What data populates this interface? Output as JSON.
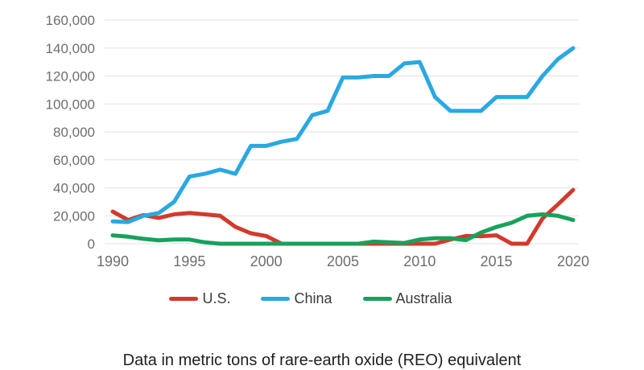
{
  "caption": {
    "text": "Data in metric tons of rare-earth oxide (REO) equivalent"
  },
  "chart_data": {
    "type": "line",
    "title": "",
    "xlabel": "",
    "ylabel": "",
    "unit": "metric tons REO equivalent",
    "grid": "horizontal",
    "legend_position": "bottom",
    "ylim": [
      0,
      160000
    ],
    "y_ticks": [
      0,
      20000,
      40000,
      60000,
      80000,
      100000,
      120000,
      140000,
      160000
    ],
    "y_tick_labels": [
      "0",
      "20,000",
      "40,000",
      "60,000",
      "80,000",
      "100,000",
      "120,000",
      "140,000",
      "160,000"
    ],
    "x_ticks": [
      1990,
      1995,
      2000,
      2005,
      2010,
      2015,
      2020
    ],
    "x_tick_labels": [
      "1990",
      "1995",
      "2000",
      "2005",
      "2010",
      "2015",
      "2020"
    ],
    "x": [
      1990,
      1991,
      1992,
      1993,
      1994,
      1995,
      1996,
      1997,
      1998,
      1999,
      2000,
      2001,
      2002,
      2003,
      2004,
      2005,
      2006,
      2007,
      2008,
      2009,
      2010,
      2011,
      2012,
      2013,
      2014,
      2015,
      2016,
      2017,
      2018,
      2019,
      2020
    ],
    "series": [
      {
        "id": "us",
        "name": "U.S.",
        "color": "#d33a2c",
        "values": [
          23000,
          17000,
          20500,
          18500,
          21000,
          22000,
          21000,
          20000,
          12000,
          7500,
          5500,
          0,
          0,
          0,
          0,
          0,
          0,
          0,
          0,
          0,
          0,
          0,
          3000,
          5500,
          5400,
          6000,
          0,
          0,
          18000,
          28000,
          38500
        ]
      },
      {
        "id": "china",
        "name": "China",
        "color": "#2aa8e1",
        "values": [
          16000,
          15500,
          20000,
          22000,
          30000,
          48000,
          50000,
          53000,
          50000,
          70000,
          70000,
          73000,
          75000,
          92000,
          95000,
          119000,
          119000,
          120000,
          120000,
          129000,
          130000,
          105000,
          95000,
          95000,
          95000,
          105000,
          105000,
          105000,
          120000,
          132000,
          140000
        ]
      },
      {
        "id": "australia",
        "name": "Australia",
        "color": "#18a15b",
        "values": [
          6000,
          5000,
          3500,
          2500,
          3000,
          3000,
          1000,
          0,
          0,
          0,
          0,
          0,
          0,
          0,
          0,
          0,
          0,
          1500,
          1000,
          500,
          3000,
          4000,
          4000,
          2500,
          8000,
          12000,
          15000,
          20000,
          21000,
          20000,
          17000
        ]
      }
    ]
  }
}
